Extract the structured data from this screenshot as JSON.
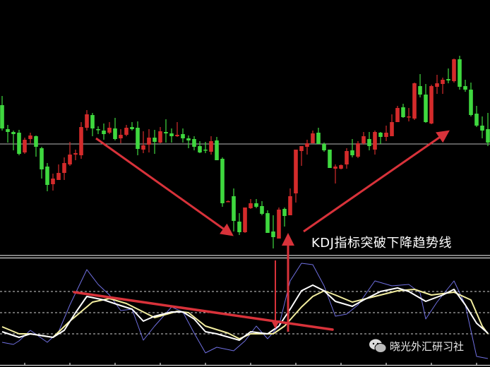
{
  "chart_data": [
    {
      "type": "candlestick",
      "panel": "price",
      "colors": {
        "up": "#d42b2b",
        "down": "#3fd83f",
        "background": "#000000",
        "horizontal_line": "#b8b8b8"
      },
      "ylim": [
        1.0998,
        1.136
      ],
      "horizontal_line": 1.1156,
      "grid": false,
      "candles_ohlc": [
        [
          1.1211,
          1.1224,
          1.1175,
          1.1178
        ],
        [
          1.1177,
          1.1183,
          1.1158,
          1.1173
        ],
        [
          1.1173,
          1.1175,
          1.1147,
          1.117
        ],
        [
          1.1172,
          1.1176,
          1.114,
          1.1142
        ],
        [
          1.1144,
          1.1165,
          1.1142,
          1.1162
        ],
        [
          1.1163,
          1.1172,
          1.1157,
          1.1168
        ],
        [
          1.1167,
          1.1168,
          1.1138,
          1.1152
        ],
        [
          1.115,
          1.1152,
          1.1107,
          1.112
        ],
        [
          1.1124,
          1.1129,
          1.1089,
          1.1098
        ],
        [
          1.1099,
          1.1114,
          1.109,
          1.1107
        ],
        [
          1.1105,
          1.1127,
          1.1105,
          1.1115
        ],
        [
          1.1115,
          1.1137,
          1.1105,
          1.1129
        ],
        [
          1.1127,
          1.1159,
          1.1125,
          1.1141
        ],
        [
          1.1141,
          1.1148,
          1.1133,
          1.1143
        ],
        [
          1.114,
          1.1187,
          1.1135,
          1.118
        ],
        [
          1.1179,
          1.1204,
          1.1175,
          1.1198
        ],
        [
          1.1197,
          1.12,
          1.1167,
          1.1178
        ],
        [
          1.1177,
          1.1181,
          1.117,
          1.1176
        ],
        [
          1.1175,
          1.1185,
          1.1162,
          1.117
        ],
        [
          1.1172,
          1.1187,
          1.117,
          1.1179
        ],
        [
          1.1178,
          1.1193,
          1.1161,
          1.1163
        ],
        [
          1.1164,
          1.1177,
          1.1157,
          1.1169
        ],
        [
          1.1169,
          1.1183,
          1.1167,
          1.1179
        ],
        [
          1.118,
          1.1187,
          1.1175,
          1.1177
        ],
        [
          1.1179,
          1.1188,
          1.114,
          1.1149
        ],
        [
          1.1148,
          1.1174,
          1.1143,
          1.1154
        ],
        [
          1.1155,
          1.1177,
          1.1144,
          1.1165
        ],
        [
          1.1165,
          1.1176,
          1.1142,
          1.1159
        ],
        [
          1.1158,
          1.118,
          1.1157,
          1.1174
        ],
        [
          1.1173,
          1.1191,
          1.1158,
          1.1171
        ],
        [
          1.1171,
          1.1178,
          1.1158,
          1.1167
        ],
        [
          1.1167,
          1.1187,
          1.1166,
          1.1169
        ],
        [
          1.117,
          1.1178,
          1.1158,
          1.1164
        ],
        [
          1.1164,
          1.1168,
          1.115,
          1.1161
        ],
        [
          1.1163,
          1.1167,
          1.1147,
          1.1152
        ],
        [
          1.1153,
          1.116,
          1.1143,
          1.1144
        ],
        [
          1.1148,
          1.1159,
          1.1143,
          1.1147
        ],
        [
          1.1145,
          1.1167,
          1.1141,
          1.116
        ],
        [
          1.1161,
          1.1166,
          1.1133,
          1.1133
        ],
        [
          1.1135,
          1.1137,
          1.1067,
          1.1072
        ],
        [
          1.1075,
          1.1076,
          1.1074,
          1.1075
        ],
        [
          1.1082,
          1.1093,
          1.1032,
          1.1047
        ],
        [
          1.1046,
          1.1058,
          1.1027,
          1.1031
        ],
        [
          1.1031,
          1.1066,
          1.103,
          1.1066
        ],
        [
          1.1065,
          1.1078,
          1.1064,
          1.1072
        ],
        [
          1.1072,
          1.1078,
          1.1065,
          1.1067
        ],
        [
          1.1068,
          1.1075,
          1.1055,
          1.1057
        ],
        [
          1.1058,
          1.1062,
          1.103,
          1.103
        ],
        [
          1.1032,
          1.1055,
          1.1008,
          1.1024
        ],
        [
          1.1022,
          1.1066,
          1.1022,
          1.1063
        ],
        [
          1.1064,
          1.1066,
          1.1039,
          1.1054
        ],
        [
          1.1055,
          1.1093,
          1.1055,
          1.1082
        ],
        [
          1.1086,
          1.1148,
          1.1073,
          1.1148
        ],
        [
          1.1146,
          1.1153,
          1.1125,
          1.1153
        ],
        [
          1.1152,
          1.1162,
          1.1141,
          1.1157
        ],
        [
          1.1157,
          1.1175,
          1.1157,
          1.1171
        ],
        [
          1.1172,
          1.1179,
          1.1156,
          1.1156
        ],
        [
          1.1156,
          1.1158,
          1.1145,
          1.1147
        ],
        [
          1.1148,
          1.1148,
          1.1122,
          1.1122
        ],
        [
          1.1121,
          1.1127,
          1.11,
          1.1124
        ],
        [
          1.1121,
          1.1127,
          1.112,
          1.1126
        ],
        [
          1.1127,
          1.115,
          1.1121,
          1.1146
        ],
        [
          1.1147,
          1.1163,
          1.1137,
          1.114
        ],
        [
          1.1138,
          1.116,
          1.1136,
          1.1157
        ],
        [
          1.1157,
          1.1173,
          1.1155,
          1.1167
        ],
        [
          1.1163,
          1.1173,
          1.1147,
          1.1153
        ],
        [
          1.1148,
          1.1175,
          1.1141,
          1.1173
        ],
        [
          1.1172,
          1.1173,
          1.1156,
          1.1166
        ],
        [
          1.1166,
          1.1182,
          1.116,
          1.1172
        ],
        [
          1.1167,
          1.1198,
          1.1167,
          1.1187
        ],
        [
          1.1187,
          1.121,
          1.1187,
          1.1207
        ],
        [
          1.1208,
          1.1213,
          1.1193,
          1.1194
        ],
        [
          1.1194,
          1.1207,
          1.1188,
          1.1195
        ],
        [
          1.1192,
          1.1243,
          1.119,
          1.1242
        ],
        [
          1.1238,
          1.1255,
          1.1222,
          1.1226
        ],
        [
          1.1226,
          1.1241,
          1.1186,
          1.1187
        ],
        [
          1.1185,
          1.124,
          1.1184,
          1.1238
        ],
        [
          1.1237,
          1.1254,
          1.1227,
          1.1242
        ],
        [
          1.1241,
          1.125,
          1.1227,
          1.1247
        ],
        [
          1.1248,
          1.1263,
          1.1242,
          1.1246
        ],
        [
          1.1245,
          1.1277,
          1.1243,
          1.1276
        ],
        [
          1.1276,
          1.1281,
          1.1233,
          1.1237
        ],
        [
          1.1238,
          1.1247,
          1.123,
          1.1233
        ],
        [
          1.1233,
          1.1243,
          1.1195,
          1.1197
        ],
        [
          1.1199,
          1.121,
          1.118,
          1.1182
        ],
        [
          1.1182,
          1.1195,
          1.1164,
          1.1175
        ],
        [
          1.1177,
          1.12,
          1.1153,
          1.1158
        ]
      ]
    },
    {
      "type": "line",
      "panel": "KDJ",
      "ylim": [
        -25,
        127
      ],
      "levels": [
        20,
        50,
        80
      ],
      "colors": {
        "K": "#ffffff",
        "D": "#f3eea0",
        "J": "#6f6fe0"
      },
      "series": [
        {
          "id": "K",
          "points": [
            [
              1,
              23
            ],
            [
              4,
              15
            ],
            [
              6,
              20
            ],
            [
              10,
              15
            ],
            [
              12,
              25
            ],
            [
              14,
              50
            ],
            [
              16,
              73
            ],
            [
              19,
              68
            ],
            [
              22,
              60
            ],
            [
              24,
              55
            ],
            [
              26,
              38
            ],
            [
              28,
              45
            ],
            [
              31,
              51
            ],
            [
              33,
              51
            ],
            [
              35,
              41
            ],
            [
              37,
              23
            ],
            [
              39,
              20
            ],
            [
              43,
              11
            ],
            [
              45,
              23
            ],
            [
              48,
              20
            ],
            [
              50,
              31
            ],
            [
              52,
              55
            ],
            [
              54,
              81
            ],
            [
              56,
              89
            ],
            [
              58,
              81
            ],
            [
              60,
              66
            ],
            [
              63,
              59
            ],
            [
              65,
              68
            ],
            [
              68,
              80
            ],
            [
              71,
              85
            ],
            [
              73,
              80
            ],
            [
              76,
              66
            ],
            [
              79,
              75
            ],
            [
              81,
              83
            ],
            [
              83,
              61
            ],
            [
              85,
              35
            ],
            [
              87,
              21
            ]
          ]
        },
        {
          "id": "D",
          "points": [
            [
              1,
              30
            ],
            [
              4,
              20
            ],
            [
              6,
              20
            ],
            [
              10,
              15
            ],
            [
              13,
              38
            ],
            [
              17,
              65
            ],
            [
              20,
              70
            ],
            [
              23,
              63
            ],
            [
              26,
              51
            ],
            [
              28,
              43
            ],
            [
              32,
              52
            ],
            [
              34,
              50
            ],
            [
              37,
              31
            ],
            [
              41,
              21
            ],
            [
              43,
              13
            ],
            [
              45,
              20
            ],
            [
              49,
              20
            ],
            [
              51,
              31
            ],
            [
              54,
              58
            ],
            [
              56,
              73
            ],
            [
              58,
              81
            ],
            [
              60,
              75
            ],
            [
              63,
              65
            ],
            [
              67,
              73
            ],
            [
              71,
              81
            ],
            [
              74,
              83
            ],
            [
              77,
              75
            ],
            [
              81,
              79
            ],
            [
              84,
              68
            ],
            [
              86,
              31
            ],
            [
              87,
              20
            ]
          ]
        },
        {
          "id": "J",
          "points": [
            [
              1,
              8
            ],
            [
              3,
              5
            ],
            [
              4,
              10
            ],
            [
              6,
              25
            ],
            [
              9,
              8
            ],
            [
              11,
              23
            ],
            [
              13,
              61
            ],
            [
              16,
              111
            ],
            [
              18,
              90
            ],
            [
              20,
              75
            ],
            [
              22,
              53
            ],
            [
              24,
              55
            ],
            [
              26,
              11
            ],
            [
              28,
              31
            ],
            [
              31,
              58
            ],
            [
              33,
              51
            ],
            [
              35,
              21
            ],
            [
              37,
              -7
            ],
            [
              39,
              1
            ],
            [
              42,
              -4
            ],
            [
              44,
              10
            ],
            [
              46,
              31
            ],
            [
              48,
              13
            ],
            [
              50,
              31
            ],
            [
              52,
              95
            ],
            [
              54,
              120
            ],
            [
              56,
              118
            ],
            [
              58,
              88
            ],
            [
              60,
              45
            ],
            [
              62,
              48
            ],
            [
              64,
              61
            ],
            [
              67,
              95
            ],
            [
              70,
              88
            ],
            [
              73,
              90
            ],
            [
              75,
              78
            ],
            [
              76,
              41
            ],
            [
              78,
              65
            ],
            [
              81,
              95
            ],
            [
              83,
              61
            ],
            [
              85,
              -12
            ],
            [
              87,
              -15
            ]
          ]
        }
      ]
    }
  ],
  "annotation": {
    "text": "KDJ指标突破下降趋势线",
    "arrow_color": "#d8323a"
  },
  "watermark": {
    "text": "晓光外汇研习社",
    "icon": "wechat-icon"
  }
}
